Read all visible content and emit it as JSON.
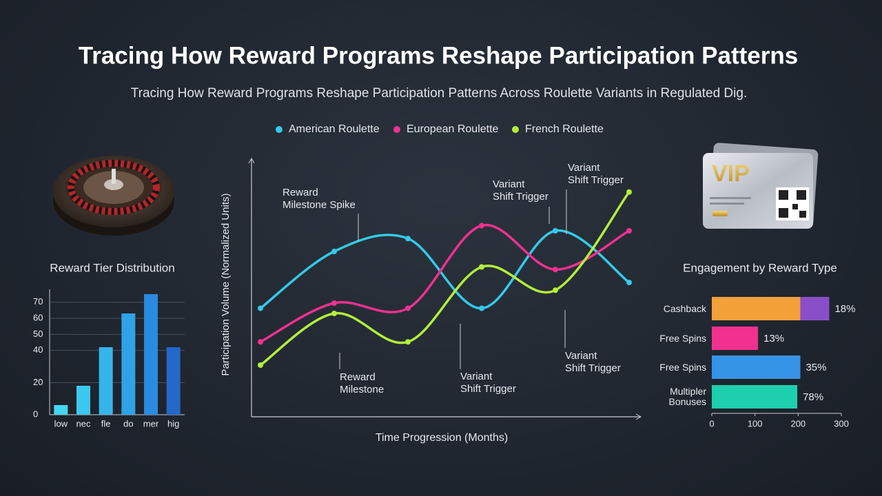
{
  "title": "Tracing How Reward Programs Reshape Participation Patterns",
  "subtitle": "Tracing How Reward Programs Reshape Participation Patterns Across Roulette Variants in Regulated Dig.",
  "vip_card": {
    "label": "VIP"
  },
  "chart_data": [
    {
      "type": "line",
      "x_label": "Time Progression (Months)",
      "y_label": "Participation Volume (Normalized Units)",
      "categories": [
        null,
        null,
        null,
        null,
        null,
        null
      ],
      "ylim": [
        0,
        100
      ],
      "series": [
        {
          "name": "American Roulette",
          "color": "#35c9e8",
          "values": [
            42,
            64,
            69,
            42,
            72,
            52
          ]
        },
        {
          "name": "European Roulette",
          "color": "#f0318f",
          "values": [
            29,
            44,
            42,
            74,
            57,
            72
          ]
        },
        {
          "name": "French Roulette",
          "color": "#b4ee3a",
          "values": [
            20,
            40,
            29,
            58,
            49,
            87
          ]
        }
      ],
      "annotations": [
        [
          "Reward",
          "Milestone Spike"
        ],
        [
          "Variant",
          "Shift Trigger"
        ],
        [
          "Variant",
          "Shift Trigger"
        ],
        [
          "Reward",
          "Milestone"
        ],
        [
          "Variant",
          "Shift Trigger"
        ],
        [
          "Variant",
          "Shift Trigger"
        ]
      ]
    },
    {
      "type": "bar",
      "title": "Reward Tier Distribution",
      "categories": [
        "low",
        "nec",
        "fle",
        "do",
        "mer",
        "hig"
      ],
      "values": [
        6,
        18,
        42,
        63,
        75,
        42
      ],
      "colors": [
        "#44d6f2",
        "#3cc8ef",
        "#35b5ec",
        "#2fa2e8",
        "#2a8ce0",
        "#2468c8"
      ],
      "ylim": [
        0,
        78
      ],
      "yticks": [
        0,
        20,
        40,
        50,
        60,
        70
      ],
      "grid": true
    },
    {
      "type": "hbar",
      "title": "Engagement by Reward Type",
      "categories": [
        "Cashback",
        "Free Spins",
        "Free Spins",
        "Multipler Bonuses"
      ],
      "series": [
        {
          "colors": [
            "#f5a13a",
            "#f0318f",
            "#3594e6",
            "#1dcfae"
          ],
          "values": [
            205,
            107,
            205,
            198
          ]
        },
        {
          "colors": [
            "#8a4fc8",
            "#8a4fc8",
            "#8a4fc8",
            "#8a4fc8"
          ],
          "values": [
            67,
            null,
            null,
            null
          ]
        }
      ],
      "annotations": [
        "18%",
        "13%",
        "35%",
        "78%"
      ],
      "xlim": [
        0,
        300
      ],
      "xticks": [
        0,
        100,
        200,
        300
      ]
    }
  ]
}
